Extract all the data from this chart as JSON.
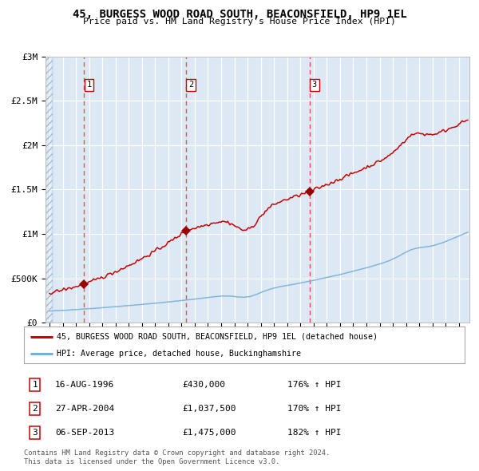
{
  "title": "45, BURGESS WOOD ROAD SOUTH, BEACONSFIELD, HP9 1EL",
  "subtitle": "Price paid vs. HM Land Registry's House Price Index (HPI)",
  "plot_bg_color": "#dce9f5",
  "red_line_color": "#cc0000",
  "blue_line_color": "#7bafd4",
  "dashed_line_color": "#ee3333",
  "marker_color": "#990000",
  "ylabel_ticks": [
    "£0",
    "£500K",
    "£1M",
    "£1.5M",
    "£2M",
    "£2.5M",
    "£3M"
  ],
  "ytick_values": [
    0,
    500000,
    1000000,
    1500000,
    2000000,
    2500000,
    3000000
  ],
  "ylim": [
    0,
    3000000
  ],
  "xlim_start": 1993.7,
  "xlim_end": 2025.8,
  "legend_red": "45, BURGESS WOOD ROAD SOUTH, BEACONSFIELD, HP9 1EL (detached house)",
  "legend_blue": "HPI: Average price, detached house, Buckinghamshire",
  "footer": "Contains HM Land Registry data © Crown copyright and database right 2024.\nThis data is licensed under the Open Government Licence v3.0.",
  "table_rows": [
    [
      "1",
      "16-AUG-1996",
      "£430,000",
      "176% ↑ HPI"
    ],
    [
      "2",
      "27-APR-2004",
      "£1,037,500",
      "170% ↑ HPI"
    ],
    [
      "3",
      "06-SEP-2013",
      "£1,475,000",
      "182% ↑ HPI"
    ]
  ],
  "sale_years": [
    1996.62,
    2004.32,
    2013.68
  ],
  "sale_prices": [
    430000,
    1037500,
    1475000
  ]
}
